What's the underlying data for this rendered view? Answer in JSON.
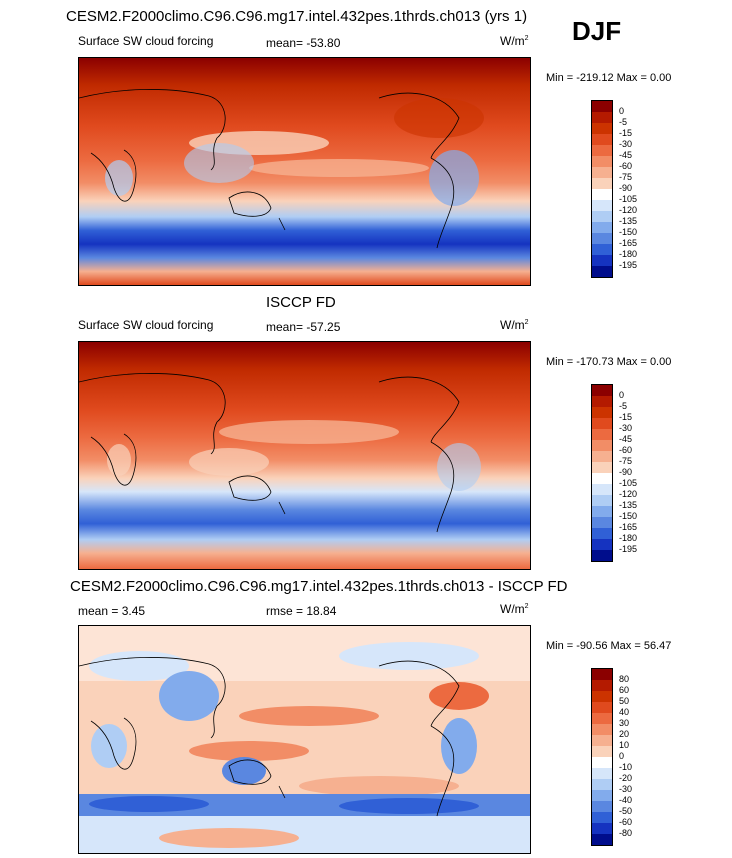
{
  "season": "DJF",
  "panels": [
    {
      "id": "model",
      "title": "CESM2.F2000climo.C96.C96.mg17.intel.432pes.1thrds.ch013 (yrs 1)",
      "subtitle": "Surface SW cloud forcing",
      "stat1": "mean= -53.80",
      "stat2": "",
      "units": "W/m",
      "units_sup": "2",
      "minmax": "Min = -219.12 Max =   0.00"
    },
    {
      "id": "obs",
      "title": "ISCCP FD",
      "subtitle": "Surface SW cloud forcing",
      "stat1": "mean= -57.25",
      "stat2": "",
      "units": "W/m",
      "units_sup": "2",
      "minmax": "Min = -170.73 Max =   0.00"
    },
    {
      "id": "diff",
      "title": "CESM2.F2000climo.C96.C96.mg17.intel.432pes.1thrds.ch013 - ISCCP FD",
      "subtitle": "",
      "stat1": "mean =   3.45",
      "stat2": "rmse =  18.84",
      "units": "W/m",
      "units_sup": "2",
      "minmax": "Min = -90.56 Max =  56.47"
    }
  ],
  "chart_data": [
    {
      "type": "heatmap",
      "title": "CESM2.F2000climo.C96.C96.mg17.intel.432pes.1thrds.ch013 (yrs 1)",
      "variable": "Surface SW cloud forcing",
      "units": "W/m2",
      "mean": -53.8,
      "min": -219.12,
      "max": 0.0,
      "colorbar_levels": [
        "0",
        "-5",
        "-15",
        "-30",
        "-45",
        "-60",
        "-75",
        "-90",
        "-105",
        "-120",
        "-135",
        "-150",
        "-165",
        "-180",
        "-195"
      ],
      "colorbar_colors": [
        "#8b0000",
        "#b41a00",
        "#cc3300",
        "#e04a1e",
        "#ec6a40",
        "#f28d66",
        "#f6b090",
        "#fad2ba",
        "#ffffff",
        "#d6e6fa",
        "#afcdf4",
        "#82abec",
        "#5a87e0",
        "#3060d6",
        "#1533c0",
        "#000d8c"
      ],
      "projection": "cylindrical equidistant, 0E-360E, 90S-90N",
      "legend_position": "right"
    },
    {
      "type": "heatmap",
      "title": "ISCCP FD",
      "variable": "Surface SW cloud forcing",
      "units": "W/m2",
      "mean": -57.25,
      "min": -170.73,
      "max": 0.0,
      "colorbar_levels": [
        "0",
        "-5",
        "-15",
        "-30",
        "-45",
        "-60",
        "-75",
        "-90",
        "-105",
        "-120",
        "-135",
        "-150",
        "-165",
        "-180",
        "-195"
      ],
      "colorbar_colors": [
        "#8b0000",
        "#b41a00",
        "#cc3300",
        "#e04a1e",
        "#ec6a40",
        "#f28d66",
        "#f6b090",
        "#fad2ba",
        "#ffffff",
        "#d6e6fa",
        "#afcdf4",
        "#82abec",
        "#5a87e0",
        "#3060d6",
        "#1533c0",
        "#000d8c"
      ],
      "projection": "cylindrical equidistant, 0E-360E, 90S-90N",
      "legend_position": "right"
    },
    {
      "type": "heatmap",
      "title": "CESM2.F2000climo.C96.C96.mg17.intel.432pes.1thrds.ch013 - ISCCP FD",
      "units": "W/m2",
      "mean": 3.45,
      "rmse": 18.84,
      "min": -90.56,
      "max": 56.47,
      "colorbar_levels": [
        "80",
        "60",
        "50",
        "40",
        "30",
        "20",
        "10",
        "0",
        "-10",
        "-20",
        "-30",
        "-40",
        "-50",
        "-60",
        "-80"
      ],
      "colorbar_colors": [
        "#8b0000",
        "#b41a00",
        "#cc3300",
        "#e04a1e",
        "#ec6a40",
        "#f28d66",
        "#f6b090",
        "#fad2ba",
        "#ffffff",
        "#d6e6fa",
        "#afcdf4",
        "#82abec",
        "#5a87e0",
        "#3060d6",
        "#1533c0",
        "#000d8c"
      ],
      "projection": "cylindrical equidistant, 0E-360E, 90S-90N",
      "legend_position": "right"
    }
  ]
}
